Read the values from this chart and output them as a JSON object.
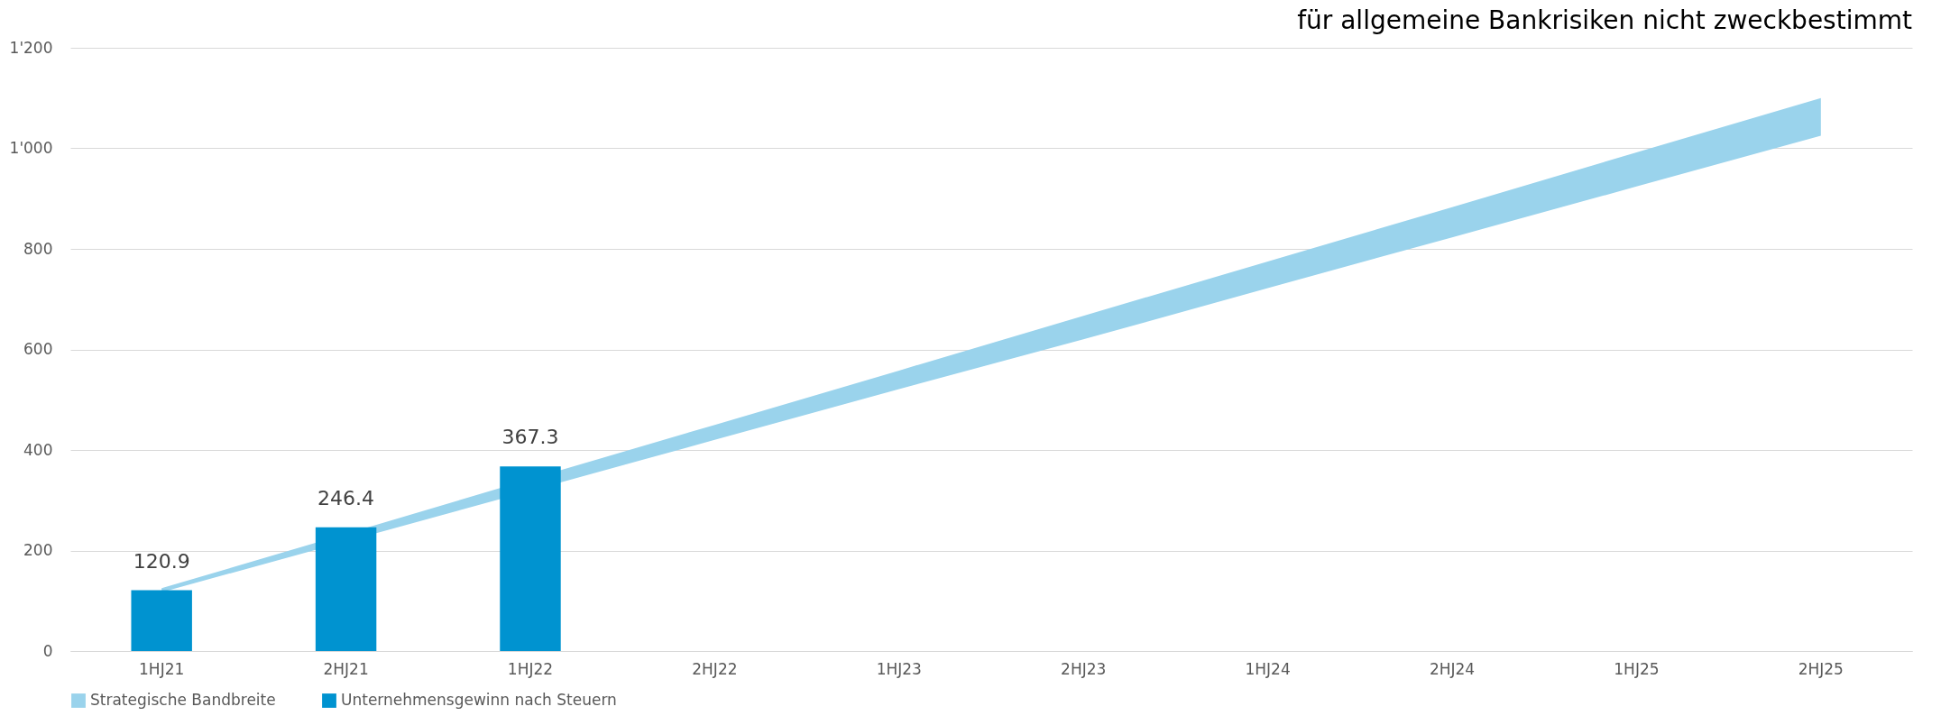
{
  "chart_data": {
    "type": "bar",
    "annotations": [
      "für allgemeine Bankrisiken nicht zweckbestimmt"
    ],
    "categories": [
      "1HJ21",
      "2HJ21",
      "1HJ22",
      "2HJ22",
      "1HJ23",
      "2HJ23",
      "1HJ24",
      "2HJ24",
      "1HJ25",
      "2HJ25"
    ],
    "series": [
      {
        "name": "Strategische Bandbreite",
        "type": "area",
        "color": "#9ad3ec",
        "values": [
          null,
          null,
          null,
          null,
          null,
          null,
          null,
          null,
          null,
          null
        ],
        "lower": [
          117,
          218,
          319,
          420,
          521,
          620,
          722,
          823,
          924,
          1025
        ],
        "upper": [
          125,
          233,
          342,
          450,
          558,
          667,
          775,
          883,
          992,
          1100
        ]
      },
      {
        "name": "Unternehmensgewinn nach Steuern",
        "color": "#0093d0",
        "values": [
          120.9,
          246.4,
          367.3,
          null,
          null,
          null,
          null,
          null,
          null,
          null
        ]
      }
    ],
    "ylim": [
      0,
      1200
    ],
    "yticks": [
      0,
      200,
      400,
      600,
      800,
      {
        "value": 1000,
        "label": "1'000"
      },
      {
        "value": 1200,
        "label": "1'200"
      }
    ],
    "grid": "y",
    "legend": "bottom",
    "data_labels": true
  }
}
